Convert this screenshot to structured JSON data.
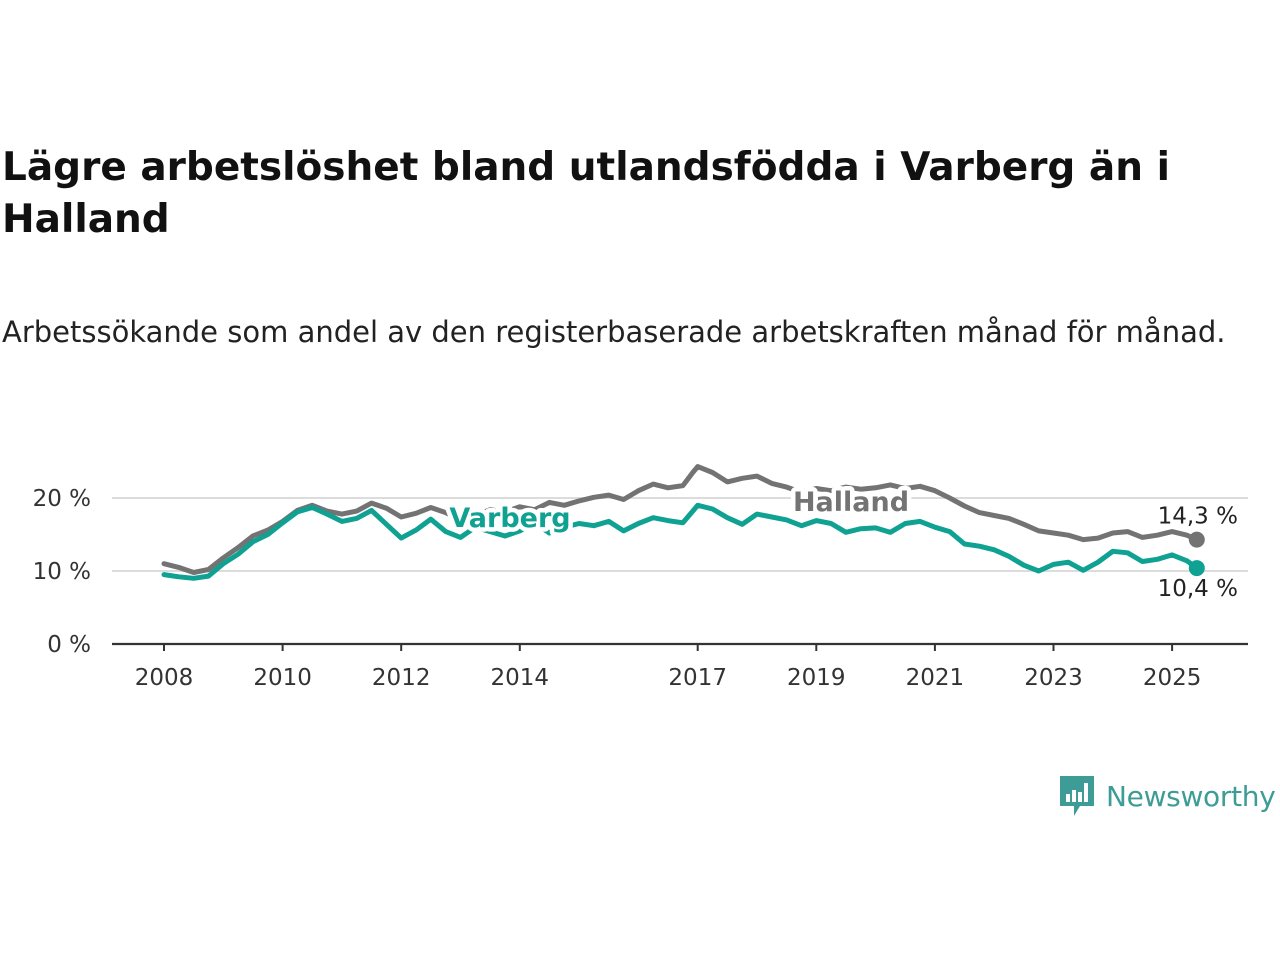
{
  "title": "Lägre arbetslöshet bland utlandsfödda i Varberg än i Halland",
  "subtitle": "Arbetssökande som andel av den registerbaserade arbetskraften månad för månad.",
  "brand": {
    "name": "Newsworthy",
    "color": "#3d9c95"
  },
  "chart_data": {
    "type": "line",
    "title": "Lägre arbetslöshet bland utlandsfödda i Varberg än i Halland",
    "subtitle": "Arbetssökande som andel av den registerbaserade arbetskraften månad för månad.",
    "xlabel": "",
    "ylabel": "",
    "ylim": [
      0,
      20
    ],
    "y_ticks": [
      "0 %",
      "10 %",
      "20 %"
    ],
    "x_ticks": [
      "2008",
      "2010",
      "2012",
      "2014",
      "2017",
      "2019",
      "2021",
      "2023",
      "2025"
    ],
    "grid": true,
    "legend": "inline labels",
    "series": [
      {
        "name": "Halland",
        "color": "#737373",
        "end_label": "14,3 %",
        "points": [
          [
            "2008-01",
            11.0
          ],
          [
            "2008-04",
            10.5
          ],
          [
            "2008-07",
            9.8
          ],
          [
            "2008-10",
            10.2
          ],
          [
            "2009-01",
            11.8
          ],
          [
            "2009-04",
            13.2
          ],
          [
            "2009-07",
            14.8
          ],
          [
            "2009-10",
            15.6
          ],
          [
            "2010-01",
            16.8
          ],
          [
            "2010-04",
            18.3
          ],
          [
            "2010-07",
            19.0
          ],
          [
            "2010-10",
            18.2
          ],
          [
            "2011-01",
            17.8
          ],
          [
            "2011-04",
            18.2
          ],
          [
            "2011-07",
            19.3
          ],
          [
            "2011-10",
            18.6
          ],
          [
            "2012-01",
            17.4
          ],
          [
            "2012-04",
            17.9
          ],
          [
            "2012-07",
            18.7
          ],
          [
            "2012-10",
            18.0
          ],
          [
            "2013-01",
            17.0
          ],
          [
            "2013-04",
            17.6
          ],
          [
            "2013-07",
            18.4
          ],
          [
            "2013-10",
            18.1
          ],
          [
            "2014-01",
            18.8
          ],
          [
            "2014-04",
            18.4
          ],
          [
            "2014-07",
            19.4
          ],
          [
            "2014-10",
            19.0
          ],
          [
            "2015-01",
            19.6
          ],
          [
            "2015-04",
            20.1
          ],
          [
            "2015-07",
            20.4
          ],
          [
            "2015-10",
            19.8
          ],
          [
            "2016-01",
            21.0
          ],
          [
            "2016-04",
            21.9
          ],
          [
            "2016-07",
            21.4
          ],
          [
            "2016-10",
            21.7
          ],
          [
            "2016-12",
            23.5
          ],
          [
            "2017-01",
            24.3
          ],
          [
            "2017-04",
            23.5
          ],
          [
            "2017-07",
            22.2
          ],
          [
            "2017-10",
            22.7
          ],
          [
            "2018-01",
            23.0
          ],
          [
            "2018-04",
            22.0
          ],
          [
            "2018-07",
            21.5
          ],
          [
            "2018-10",
            20.8
          ],
          [
            "2019-01",
            21.3
          ],
          [
            "2019-04",
            21.0
          ],
          [
            "2019-07",
            21.5
          ],
          [
            "2019-10",
            21.2
          ],
          [
            "2020-01",
            21.4
          ],
          [
            "2020-04",
            21.8
          ],
          [
            "2020-07",
            21.3
          ],
          [
            "2020-10",
            21.6
          ],
          [
            "2021-01",
            21.0
          ],
          [
            "2021-04",
            20.0
          ],
          [
            "2021-07",
            18.9
          ],
          [
            "2021-10",
            18.0
          ],
          [
            "2022-01",
            17.6
          ],
          [
            "2022-04",
            17.2
          ],
          [
            "2022-07",
            16.4
          ],
          [
            "2022-10",
            15.5
          ],
          [
            "2023-01",
            15.2
          ],
          [
            "2023-04",
            14.9
          ],
          [
            "2023-07",
            14.3
          ],
          [
            "2023-10",
            14.5
          ],
          [
            "2024-01",
            15.2
          ],
          [
            "2024-04",
            15.4
          ],
          [
            "2024-07",
            14.6
          ],
          [
            "2024-10",
            14.9
          ],
          [
            "2025-01",
            15.4
          ],
          [
            "2025-04",
            14.9
          ],
          [
            "2025-06",
            14.3
          ]
        ]
      },
      {
        "name": "Varberg",
        "color": "#0fa192",
        "end_label": "10,4 %",
        "points": [
          [
            "2008-01",
            9.5
          ],
          [
            "2008-04",
            9.2
          ],
          [
            "2008-07",
            9.0
          ],
          [
            "2008-10",
            9.3
          ],
          [
            "2009-01",
            11.0
          ],
          [
            "2009-04",
            12.3
          ],
          [
            "2009-07",
            14.0
          ],
          [
            "2009-10",
            15.0
          ],
          [
            "2010-01",
            16.6
          ],
          [
            "2010-04",
            18.1
          ],
          [
            "2010-07",
            18.7
          ],
          [
            "2010-10",
            17.8
          ],
          [
            "2011-01",
            16.8
          ],
          [
            "2011-04",
            17.2
          ],
          [
            "2011-07",
            18.3
          ],
          [
            "2011-10",
            16.4
          ],
          [
            "2012-01",
            14.5
          ],
          [
            "2012-04",
            15.6
          ],
          [
            "2012-07",
            17.1
          ],
          [
            "2012-10",
            15.4
          ],
          [
            "2013-01",
            14.6
          ],
          [
            "2013-04",
            16.0
          ],
          [
            "2013-07",
            15.4
          ],
          [
            "2013-10",
            14.8
          ],
          [
            "2014-01",
            15.5
          ],
          [
            "2014-04",
            16.6
          ],
          [
            "2014-07",
            15.2
          ],
          [
            "2014-10",
            16.0
          ],
          [
            "2015-01",
            16.5
          ],
          [
            "2015-04",
            16.2
          ],
          [
            "2015-07",
            16.8
          ],
          [
            "2015-10",
            15.5
          ],
          [
            "2016-01",
            16.5
          ],
          [
            "2016-04",
            17.3
          ],
          [
            "2016-07",
            16.9
          ],
          [
            "2016-10",
            16.6
          ],
          [
            "2016-12",
            18.2
          ],
          [
            "2017-01",
            19.0
          ],
          [
            "2017-04",
            18.5
          ],
          [
            "2017-07",
            17.3
          ],
          [
            "2017-10",
            16.4
          ],
          [
            "2018-01",
            17.8
          ],
          [
            "2018-04",
            17.4
          ],
          [
            "2018-07",
            17.0
          ],
          [
            "2018-10",
            16.2
          ],
          [
            "2019-01",
            16.9
          ],
          [
            "2019-04",
            16.5
          ],
          [
            "2019-07",
            15.3
          ],
          [
            "2019-10",
            15.8
          ],
          [
            "2020-01",
            15.9
          ],
          [
            "2020-04",
            15.3
          ],
          [
            "2020-07",
            16.5
          ],
          [
            "2020-10",
            16.8
          ],
          [
            "2021-01",
            16.0
          ],
          [
            "2021-04",
            15.4
          ],
          [
            "2021-07",
            13.7
          ],
          [
            "2021-10",
            13.4
          ],
          [
            "2022-01",
            12.9
          ],
          [
            "2022-04",
            12.0
          ],
          [
            "2022-07",
            10.8
          ],
          [
            "2022-10",
            10.0
          ],
          [
            "2023-01",
            10.9
          ],
          [
            "2023-04",
            11.2
          ],
          [
            "2023-07",
            10.1
          ],
          [
            "2023-10",
            11.2
          ],
          [
            "2024-01",
            12.7
          ],
          [
            "2024-04",
            12.5
          ],
          [
            "2024-07",
            11.3
          ],
          [
            "2024-10",
            11.6
          ],
          [
            "2025-01",
            12.2
          ],
          [
            "2025-04",
            11.4
          ],
          [
            "2025-06",
            10.4
          ]
        ]
      }
    ]
  }
}
